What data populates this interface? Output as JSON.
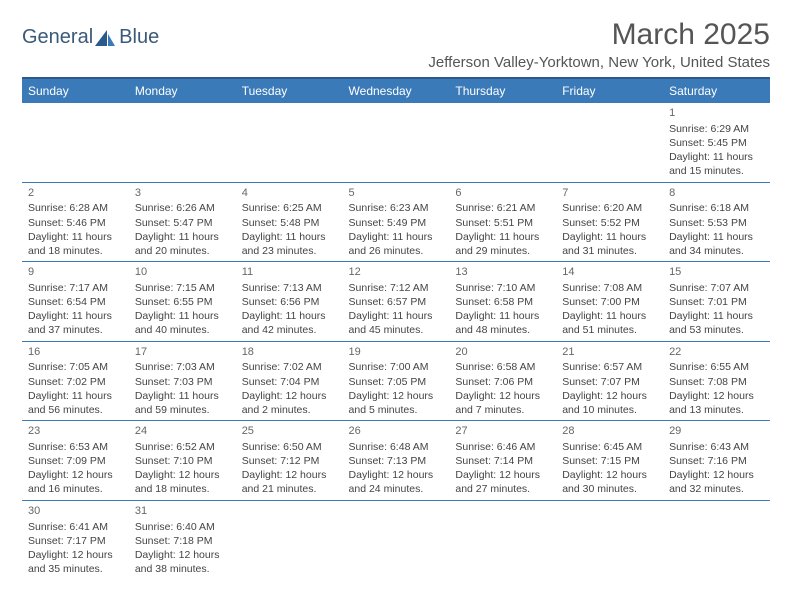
{
  "logo": {
    "textA": "General",
    "textB": "Blue"
  },
  "title": "March 2025",
  "location": "Jefferson Valley-Yorktown, New York, United States",
  "days": [
    "Sunday",
    "Monday",
    "Tuesday",
    "Wednesday",
    "Thursday",
    "Friday",
    "Saturday"
  ],
  "colors": {
    "header_bg": "#3a7ab8",
    "header_border": "#2a5a8a",
    "text": "#444444",
    "title": "#555555"
  },
  "weeks": [
    [
      null,
      null,
      null,
      null,
      null,
      null,
      {
        "n": "1",
        "sr": "6:29 AM",
        "ss": "5:45 PM",
        "dl": "11 hours and 15 minutes."
      }
    ],
    [
      {
        "n": "2",
        "sr": "6:28 AM",
        "ss": "5:46 PM",
        "dl": "11 hours and 18 minutes."
      },
      {
        "n": "3",
        "sr": "6:26 AM",
        "ss": "5:47 PM",
        "dl": "11 hours and 20 minutes."
      },
      {
        "n": "4",
        "sr": "6:25 AM",
        "ss": "5:48 PM",
        "dl": "11 hours and 23 minutes."
      },
      {
        "n": "5",
        "sr": "6:23 AM",
        "ss": "5:49 PM",
        "dl": "11 hours and 26 minutes."
      },
      {
        "n": "6",
        "sr": "6:21 AM",
        "ss": "5:51 PM",
        "dl": "11 hours and 29 minutes."
      },
      {
        "n": "7",
        "sr": "6:20 AM",
        "ss": "5:52 PM",
        "dl": "11 hours and 31 minutes."
      },
      {
        "n": "8",
        "sr": "6:18 AM",
        "ss": "5:53 PM",
        "dl": "11 hours and 34 minutes."
      }
    ],
    [
      {
        "n": "9",
        "sr": "7:17 AM",
        "ss": "6:54 PM",
        "dl": "11 hours and 37 minutes."
      },
      {
        "n": "10",
        "sr": "7:15 AM",
        "ss": "6:55 PM",
        "dl": "11 hours and 40 minutes."
      },
      {
        "n": "11",
        "sr": "7:13 AM",
        "ss": "6:56 PM",
        "dl": "11 hours and 42 minutes."
      },
      {
        "n": "12",
        "sr": "7:12 AM",
        "ss": "6:57 PM",
        "dl": "11 hours and 45 minutes."
      },
      {
        "n": "13",
        "sr": "7:10 AM",
        "ss": "6:58 PM",
        "dl": "11 hours and 48 minutes."
      },
      {
        "n": "14",
        "sr": "7:08 AM",
        "ss": "7:00 PM",
        "dl": "11 hours and 51 minutes."
      },
      {
        "n": "15",
        "sr": "7:07 AM",
        "ss": "7:01 PM",
        "dl": "11 hours and 53 minutes."
      }
    ],
    [
      {
        "n": "16",
        "sr": "7:05 AM",
        "ss": "7:02 PM",
        "dl": "11 hours and 56 minutes."
      },
      {
        "n": "17",
        "sr": "7:03 AM",
        "ss": "7:03 PM",
        "dl": "11 hours and 59 minutes."
      },
      {
        "n": "18",
        "sr": "7:02 AM",
        "ss": "7:04 PM",
        "dl": "12 hours and 2 minutes."
      },
      {
        "n": "19",
        "sr": "7:00 AM",
        "ss": "7:05 PM",
        "dl": "12 hours and 5 minutes."
      },
      {
        "n": "20",
        "sr": "6:58 AM",
        "ss": "7:06 PM",
        "dl": "12 hours and 7 minutes."
      },
      {
        "n": "21",
        "sr": "6:57 AM",
        "ss": "7:07 PM",
        "dl": "12 hours and 10 minutes."
      },
      {
        "n": "22",
        "sr": "6:55 AM",
        "ss": "7:08 PM",
        "dl": "12 hours and 13 minutes."
      }
    ],
    [
      {
        "n": "23",
        "sr": "6:53 AM",
        "ss": "7:09 PM",
        "dl": "12 hours and 16 minutes."
      },
      {
        "n": "24",
        "sr": "6:52 AM",
        "ss": "7:10 PM",
        "dl": "12 hours and 18 minutes."
      },
      {
        "n": "25",
        "sr": "6:50 AM",
        "ss": "7:12 PM",
        "dl": "12 hours and 21 minutes."
      },
      {
        "n": "26",
        "sr": "6:48 AM",
        "ss": "7:13 PM",
        "dl": "12 hours and 24 minutes."
      },
      {
        "n": "27",
        "sr": "6:46 AM",
        "ss": "7:14 PM",
        "dl": "12 hours and 27 minutes."
      },
      {
        "n": "28",
        "sr": "6:45 AM",
        "ss": "7:15 PM",
        "dl": "12 hours and 30 minutes."
      },
      {
        "n": "29",
        "sr": "6:43 AM",
        "ss": "7:16 PM",
        "dl": "12 hours and 32 minutes."
      }
    ],
    [
      {
        "n": "30",
        "sr": "6:41 AM",
        "ss": "7:17 PM",
        "dl": "12 hours and 35 minutes."
      },
      {
        "n": "31",
        "sr": "6:40 AM",
        "ss": "7:18 PM",
        "dl": "12 hours and 38 minutes."
      },
      null,
      null,
      null,
      null,
      null
    ]
  ],
  "labels": {
    "sunrise": "Sunrise:",
    "sunset": "Sunset:",
    "daylight": "Daylight:"
  }
}
